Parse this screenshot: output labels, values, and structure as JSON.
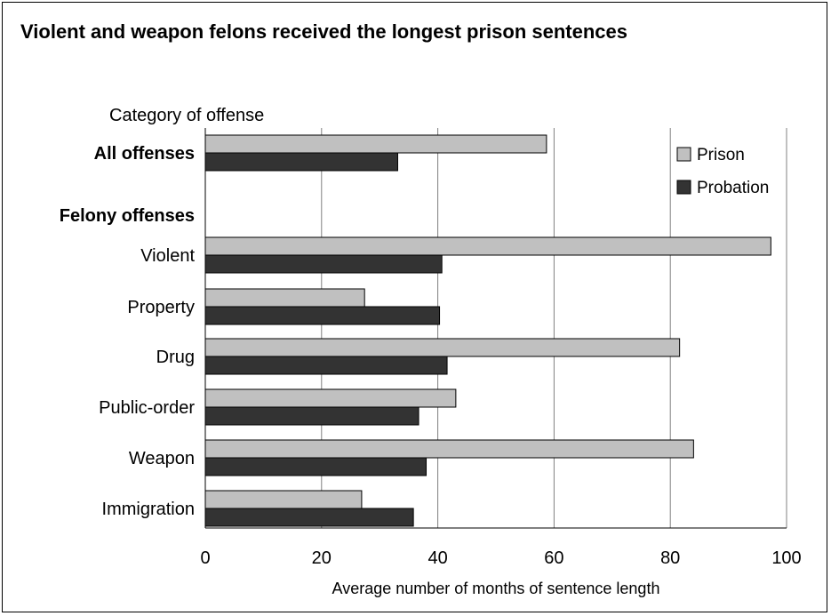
{
  "chart_data": {
    "type": "bar",
    "orientation": "horizontal",
    "title": "Violent and weapon felons received the longest prison sentences",
    "category_header": "Category of offense",
    "xlabel": "Average number of months of sentence length",
    "xlim": [
      0,
      100
    ],
    "xticks": [
      "0",
      "20",
      "40",
      "60",
      "80",
      "100"
    ],
    "grid": true,
    "legend_position": "top-right",
    "series": [
      {
        "name": "Prison",
        "color": "#c0c0c0"
      },
      {
        "name": "Probation",
        "color": "#333333"
      }
    ],
    "groups": [
      {
        "label": "All offenses",
        "bold": true,
        "values": [
          58.7,
          33.1
        ]
      },
      {
        "label": "Felony offenses",
        "bold": true,
        "header": true
      },
      {
        "label": "Violent",
        "bold": false,
        "values": [
          97.3,
          40.7
        ]
      },
      {
        "label": "Property",
        "bold": false,
        "values": [
          27.4,
          40.3
        ]
      },
      {
        "label": "Drug",
        "bold": false,
        "values": [
          81.6,
          41.6
        ]
      },
      {
        "label": "Public-order",
        "bold": false,
        "values": [
          43.1,
          36.7
        ]
      },
      {
        "label": "Weapon",
        "bold": false,
        "values": [
          84.0,
          38.0
        ]
      },
      {
        "label": "Immigration",
        "bold": false,
        "values": [
          26.9,
          35.8
        ]
      }
    ]
  }
}
